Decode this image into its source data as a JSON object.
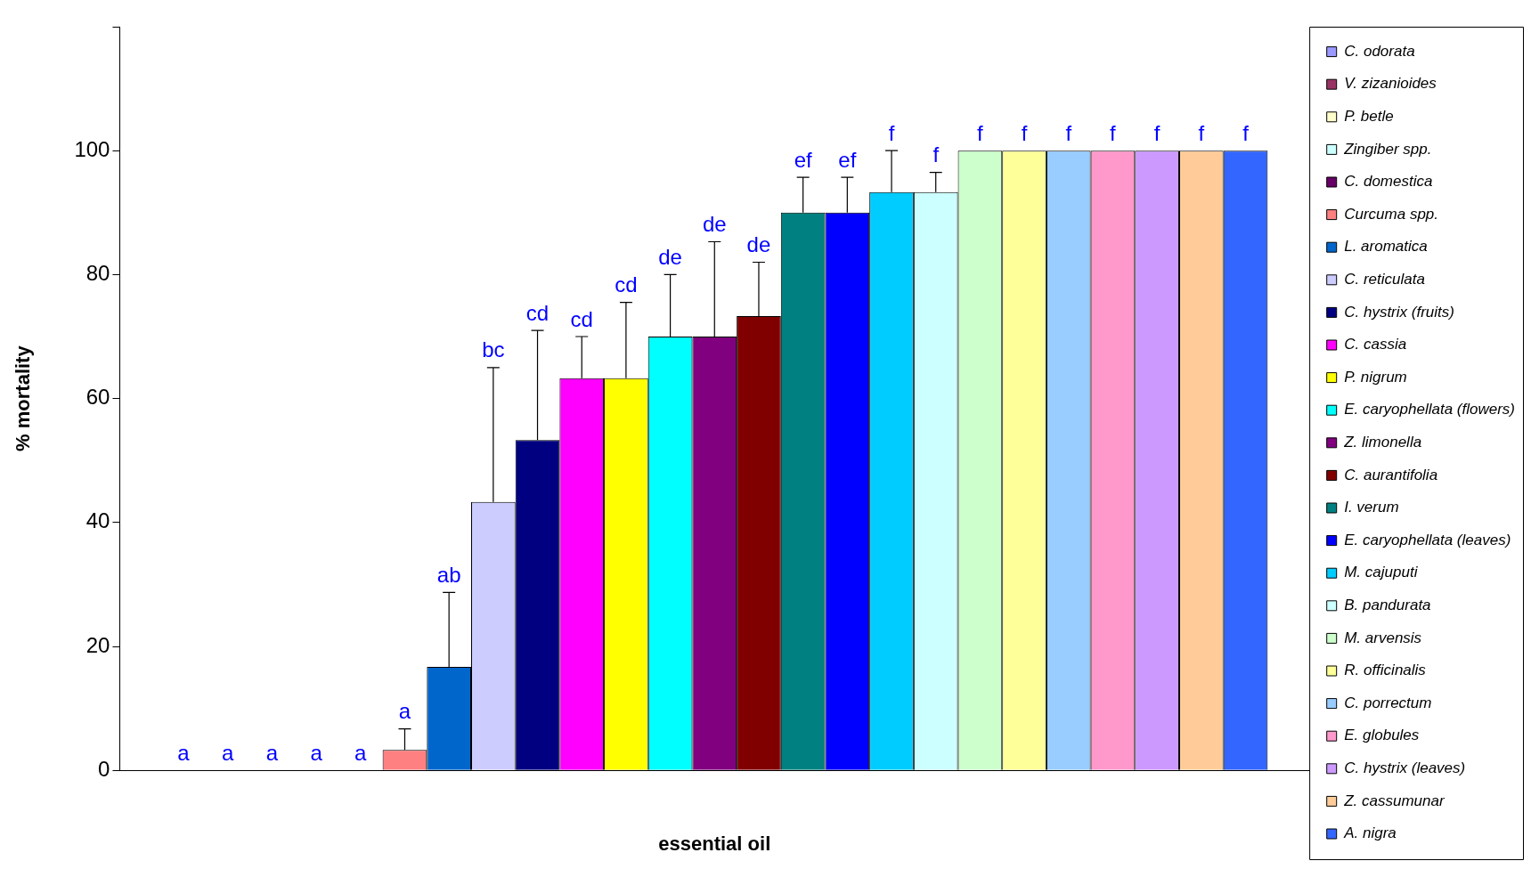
{
  "chart_data": {
    "type": "bar",
    "xlabel": "essential oil",
    "ylabel": "% mortality",
    "categories": [
      null
    ],
    "ylim": [
      0,
      120
    ],
    "yticks": [
      0,
      20,
      40,
      60,
      80,
      100,
      {
        "value": 120,
        "label": null
      }
    ],
    "grid": false,
    "legend": "right",
    "annotations": [
      "a",
      "a",
      "a",
      "a",
      "a",
      "a",
      "ab",
      "bc",
      "cd",
      "cd",
      "cd",
      "de",
      "de",
      "de",
      "ef",
      "ef",
      "f",
      "f",
      "f",
      "f",
      "f",
      "f",
      "f",
      "f",
      "f"
    ],
    "series": [
      {
        "name": "C. odorata",
        "color": "#9999ff",
        "values": [
          0
        ]
      },
      {
        "name": "V. zizanioides",
        "color": "#993366",
        "values": [
          0
        ]
      },
      {
        "name": "P. betle",
        "color": "#ffffcc",
        "values": [
          0
        ]
      },
      {
        "name": "Zingiber spp.",
        "color": "#ccffff",
        "values": [
          0
        ]
      },
      {
        "name": "C. domestica",
        "color": "#660066",
        "values": [
          0
        ]
      },
      {
        "name": "Curcuma spp.",
        "color": "#ff8080",
        "values": [
          3.3
        ],
        "errors": [
          [
            3.3,
            6.7
          ]
        ]
      },
      {
        "name": "L. aromatica",
        "color": "#0066cc",
        "values": [
          16.7
        ],
        "errors": [
          [
            16.7,
            28.7
          ]
        ]
      },
      {
        "name": "C. reticulata",
        "color": "#ccccff",
        "values": [
          43.3
        ],
        "errors": [
          [
            43.3,
            65
          ]
        ]
      },
      {
        "name": "C. hystrix (fruits)",
        "color": "#000080",
        "values": [
          53.3
        ],
        "errors": [
          [
            53.3,
            71
          ]
        ]
      },
      {
        "name": "C. cassia",
        "color": "#ff00ff",
        "values": [
          63.3
        ],
        "errors": [
          [
            63.3,
            70
          ]
        ]
      },
      {
        "name": "P. nigrum",
        "color": "#ffff00",
        "values": [
          63.3
        ],
        "errors": [
          [
            63.3,
            75.5
          ]
        ]
      },
      {
        "name": "E. caryophellata (flowers)",
        "color": "#00ffff",
        "values": [
          70
        ],
        "errors": [
          [
            70,
            80
          ]
        ]
      },
      {
        "name": "Z. limonella",
        "color": "#800080",
        "values": [
          70
        ],
        "errors": [
          [
            70,
            85.3
          ]
        ]
      },
      {
        "name": "C. aurantifolia",
        "color": "#800000",
        "values": [
          73.3
        ],
        "errors": [
          [
            73.3,
            82
          ]
        ]
      },
      {
        "name": "I. verum",
        "color": "#008080",
        "values": [
          90
        ],
        "errors": [
          [
            90,
            95.7
          ]
        ]
      },
      {
        "name": "E. caryophellata (leaves)",
        "color": "#0000ff",
        "values": [
          90
        ],
        "errors": [
          [
            90,
            95.7
          ]
        ]
      },
      {
        "name": "M. cajuputi",
        "color": "#00ccff",
        "values": [
          93.3
        ],
        "errors": [
          [
            93.3,
            100
          ]
        ]
      },
      {
        "name": "B. pandurata",
        "color": "#ccffff",
        "values": [
          93.3
        ],
        "errors": [
          [
            93.3,
            96.5
          ]
        ]
      },
      {
        "name": "M. arvensis",
        "color": "#ccffcc",
        "values": [
          100
        ]
      },
      {
        "name": "R. officinalis",
        "color": "#ffff99",
        "values": [
          100
        ]
      },
      {
        "name": "C. porrectum",
        "color": "#99ccff",
        "values": [
          100
        ]
      },
      {
        "name": "E. globules",
        "color": "#ff99cc",
        "values": [
          100
        ]
      },
      {
        "name": "C. hystrix (leaves)",
        "color": "#cc99ff",
        "values": [
          100
        ]
      },
      {
        "name": "Z. cassumunar",
        "color": "#ffcc99",
        "values": [
          100
        ]
      },
      {
        "name": "A. nigra",
        "color": "#3366ff",
        "values": [
          100
        ]
      }
    ]
  }
}
